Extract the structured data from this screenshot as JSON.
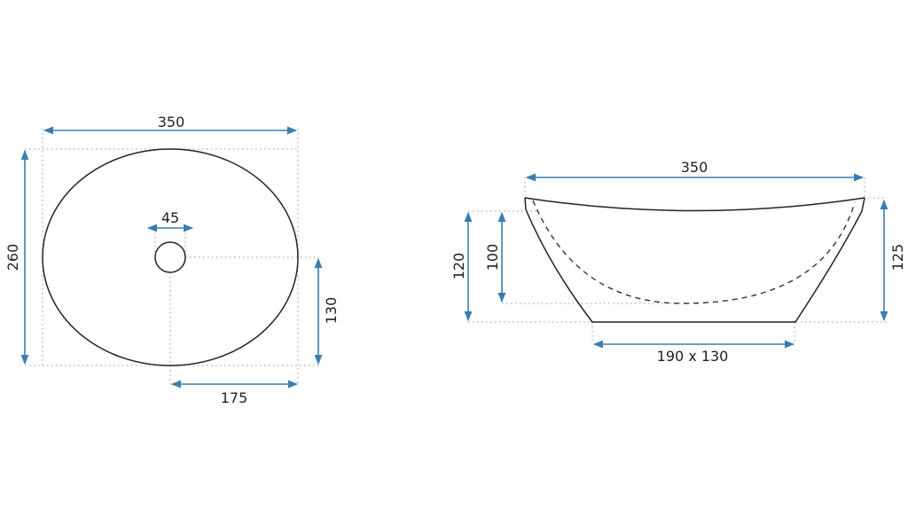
{
  "colors": {
    "dimension": "#3a7db0",
    "outline": "#222222",
    "extension": "#8a9aa8"
  },
  "top_view": {
    "width_label": "350",
    "height_label": "260",
    "drain_label": "45",
    "half_height_label": "130",
    "half_width_label": "175"
  },
  "side_view": {
    "width_label": "350",
    "outer_height_label": "120",
    "inner_depth_label": "100",
    "rim_height_label": "125",
    "base_label": "190 x 130"
  }
}
